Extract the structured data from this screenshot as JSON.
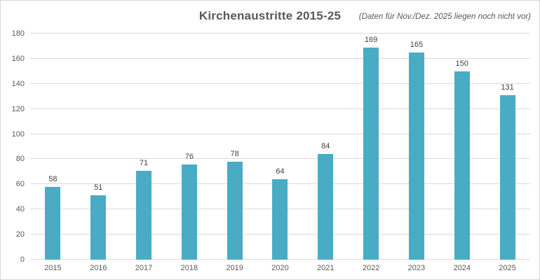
{
  "header": {
    "title": "Kirchenaustritte 2015-25",
    "subtitle": "(Daten für Nov./Dez. 2025 liegen noch nicht vor)"
  },
  "chart_data": {
    "type": "bar",
    "title": "Kirchenaustritte 2015-25",
    "subtitle": "(Daten für Nov./Dez. 2025 liegen noch nicht vor)",
    "categories": [
      "2015",
      "2016",
      "2017",
      "2018",
      "2019",
      "2020",
      "2021",
      "2022",
      "2023",
      "2024",
      "2025"
    ],
    "values": [
      58,
      51,
      71,
      76,
      78,
      64,
      84,
      169,
      165,
      150,
      131
    ],
    "xlabel": "",
    "ylabel": "",
    "ylim": [
      0,
      180
    ],
    "yticks": [
      0,
      20,
      40,
      60,
      80,
      100,
      120,
      140,
      160,
      180
    ],
    "grid": true,
    "legend": "none",
    "data_labels": true
  },
  "colors": {
    "bar": "#4aabc5",
    "gridline": "#d9d9d9",
    "axis_text": "#595959",
    "data_label_text": "#3f3f3f",
    "title_text": "#595959",
    "frame_border": "#d7d7d7",
    "background": "#ffffff"
  }
}
